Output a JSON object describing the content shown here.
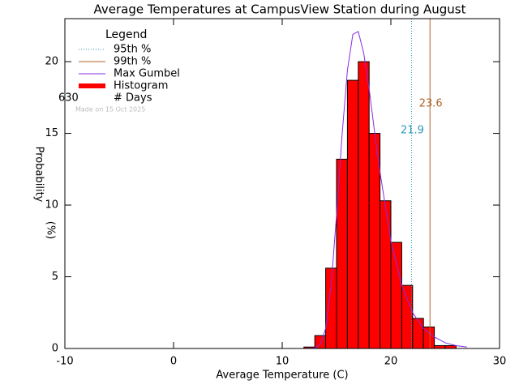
{
  "chart_data": {
    "type": "histogram",
    "title": "Average Temperatures at CampusView Station during August",
    "x_label": "Average Temperature (C)",
    "y_label": "Probability",
    "y_label_unit": "(%)",
    "xlim": [
      -10,
      30
    ],
    "xticks": [
      -10,
      0,
      10,
      20,
      30
    ],
    "ylim": [
      0,
      23
    ],
    "yticks": [
      0,
      5,
      10,
      15,
      20
    ],
    "histogram": {
      "name": "Histogram",
      "color": "#ff0000",
      "bins": [
        12,
        13,
        14,
        15,
        16,
        17,
        18,
        19,
        20,
        21,
        22,
        23,
        24,
        25,
        26
      ],
      "counts": [
        0.1,
        0.9,
        5.6,
        13.2,
        18.7,
        20.0,
        15.0,
        10.3,
        7.4,
        4.4,
        2.1,
        1.5,
        0.2,
        0.2
      ]
    },
    "curve": {
      "name": "Max Gumbel",
      "color": "#8a2be2",
      "x": [
        12,
        13,
        13.5,
        14,
        14.5,
        15,
        15.5,
        16,
        16.5,
        17,
        17.5,
        18,
        18.5,
        19,
        20,
        21,
        22,
        23,
        24,
        25,
        26,
        27
      ],
      "values": [
        0,
        0.03,
        0.28,
        1.4,
        4.4,
        9.3,
        14.8,
        19.4,
        21.9,
        22.1,
        20.6,
        18.1,
        15.1,
        12.3,
        7.5,
        4.4,
        2.5,
        1.4,
        0.8,
        0.4,
        0.2,
        0.1
      ]
    },
    "percentiles": [
      {
        "name": "95th %",
        "value": 21.9,
        "color": "#2a9bb8",
        "dotted": true
      },
      {
        "name": "99th %",
        "value": 23.6,
        "color": "#b0652a",
        "dotted": false
      }
    ],
    "legend_title": "Legend",
    "days": 630,
    "days_label": "# Days",
    "footnote": "Made on 15 Oct 2025"
  }
}
